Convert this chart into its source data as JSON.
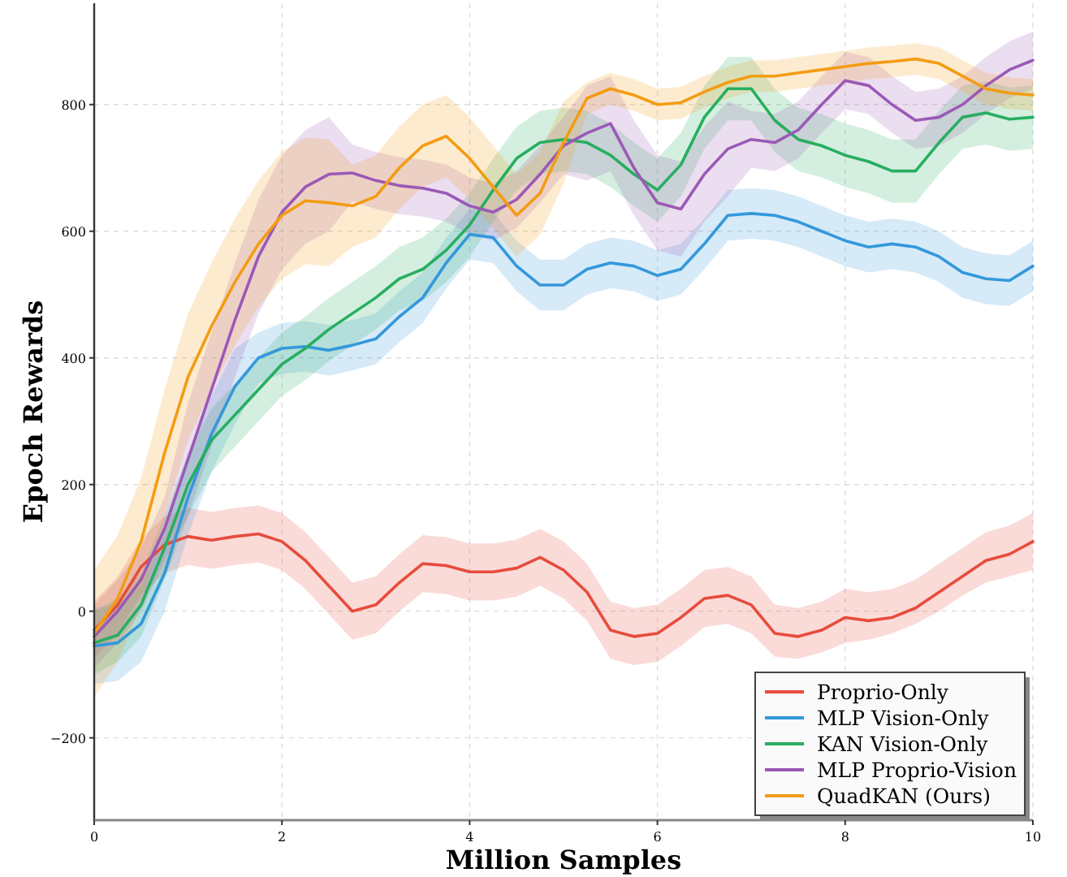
{
  "chart_data": {
    "type": "line",
    "xlabel": "Million Samples",
    "ylabel": "Epoch Rewards",
    "x": [
      0,
      0.25,
      0.5,
      0.75,
      1,
      1.25,
      1.5,
      1.75,
      2,
      2.25,
      2.5,
      2.75,
      3,
      3.25,
      3.5,
      3.75,
      4,
      4.25,
      4.5,
      4.75,
      5,
      5.25,
      5.5,
      5.75,
      6,
      6.25,
      6.5,
      6.75,
      7,
      7.25,
      7.5,
      7.75,
      8,
      8.25,
      8.5,
      8.75,
      9,
      9.25,
      9.5,
      9.75,
      10
    ],
    "xlim": [
      0,
      10
    ],
    "xticks": [
      0,
      2,
      4,
      6,
      8,
      10
    ],
    "ylim": [
      -330,
      960
    ],
    "yticks": [
      -200,
      0,
      200,
      400,
      600,
      800
    ],
    "grid": true,
    "legend": "bottom right",
    "line_style": "solid",
    "marker": "none",
    "series": [
      {
        "name": "Proprio-Only",
        "color": "#e74c3c",
        "values": [
          -30,
          10,
          70,
          105,
          118,
          112,
          118,
          122,
          110,
          80,
          40,
          0,
          10,
          45,
          75,
          72,
          62,
          62,
          68,
          85,
          65,
          30,
          -30,
          -40,
          -35,
          -10,
          20,
          25,
          10,
          -35,
          -40,
          -30,
          -10,
          -15,
          -10,
          5,
          30,
          55,
          80,
          90,
          110
        ],
        "lower": [
          -75,
          -35,
          25,
          60,
          73,
          67,
          73,
          77,
          65,
          35,
          -5,
          -45,
          -35,
          0,
          30,
          27,
          17,
          17,
          23,
          40,
          20,
          -15,
          -75,
          -85,
          -80,
          -55,
          -25,
          -20,
          -35,
          -72,
          -75,
          -65,
          -50,
          -45,
          -35,
          -20,
          0,
          25,
          45,
          55,
          65
        ],
        "upper": [
          15,
          55,
          115,
          150,
          163,
          157,
          163,
          167,
          155,
          125,
          85,
          45,
          55,
          90,
          120,
          117,
          107,
          107,
          113,
          130,
          110,
          75,
          15,
          5,
          10,
          35,
          65,
          70,
          55,
          10,
          5,
          15,
          35,
          30,
          35,
          50,
          75,
          100,
          125,
          135,
          155
        ]
      },
      {
        "name": "MLP Vision-Only",
        "color": "#3498db",
        "values": [
          -55,
          -50,
          -20,
          60,
          180,
          280,
          355,
          400,
          415,
          418,
          412,
          420,
          430,
          465,
          495,
          550,
          595,
          590,
          545,
          515,
          515,
          540,
          550,
          545,
          530,
          540,
          580,
          625,
          628,
          625,
          615,
          600,
          585,
          575,
          580,
          575,
          560,
          535,
          525,
          522,
          545
        ],
        "lower": [
          -115,
          -110,
          -80,
          0,
          120,
          220,
          295,
          360,
          375,
          378,
          372,
          380,
          390,
          425,
          455,
          510,
          555,
          550,
          505,
          475,
          475,
          500,
          510,
          505,
          490,
          500,
          540,
          585,
          588,
          585,
          575,
          560,
          545,
          535,
          540,
          535,
          520,
          495,
          485,
          482,
          505
        ],
        "upper": [
          5,
          10,
          40,
          120,
          240,
          340,
          415,
          440,
          455,
          458,
          452,
          460,
          470,
          505,
          535,
          590,
          635,
          630,
          585,
          555,
          555,
          580,
          590,
          585,
          570,
          580,
          620,
          665,
          668,
          665,
          655,
          640,
          625,
          615,
          620,
          615,
          600,
          575,
          565,
          562,
          585
        ]
      },
      {
        "name": "KAN Vision-Only",
        "color": "#27ae60",
        "values": [
          -50,
          -38,
          10,
          100,
          200,
          270,
          310,
          350,
          390,
          415,
          445,
          470,
          495,
          525,
          540,
          570,
          610,
          665,
          715,
          740,
          745,
          740,
          720,
          690,
          665,
          705,
          780,
          825,
          825,
          775,
          745,
          735,
          720,
          710,
          695,
          695,
          740,
          780,
          787,
          777,
          780
        ],
        "lower": [
          -100,
          -80,
          -40,
          50,
          150,
          220,
          260,
          300,
          340,
          365,
          395,
          420,
          445,
          475,
          490,
          520,
          560,
          615,
          665,
          690,
          695,
          690,
          670,
          640,
          615,
          655,
          730,
          775,
          775,
          725,
          695,
          685,
          670,
          660,
          645,
          645,
          690,
          730,
          737,
          727,
          730
        ],
        "upper": [
          0,
          20,
          60,
          150,
          250,
          320,
          360,
          400,
          440,
          465,
          495,
          520,
          545,
          575,
          590,
          620,
          660,
          715,
          765,
          790,
          795,
          790,
          770,
          740,
          715,
          755,
          830,
          875,
          875,
          825,
          795,
          785,
          770,
          760,
          745,
          745,
          790,
          830,
          837,
          827,
          830
        ]
      },
      {
        "name": "MLP Proprio-Vision",
        "color": "#9b59b6",
        "values": [
          -40,
          0,
          50,
          130,
          240,
          350,
          460,
          560,
          630,
          670,
          690,
          692,
          680,
          672,
          668,
          660,
          640,
          630,
          650,
          690,
          735,
          755,
          770,
          700,
          645,
          635,
          690,
          730,
          745,
          740,
          760,
          800,
          838,
          830,
          800,
          775,
          780,
          800,
          830,
          855,
          870
        ],
        "lower": [
          -90,
          -50,
          0,
          80,
          150,
          260,
          370,
          470,
          540,
          580,
          600,
          647,
          635,
          627,
          623,
          615,
          595,
          585,
          605,
          645,
          690,
          680,
          695,
          625,
          570,
          560,
          615,
          655,
          700,
          695,
          715,
          755,
          793,
          785,
          755,
          730,
          735,
          755,
          785,
          810,
          825
        ],
        "upper": [
          10,
          50,
          100,
          180,
          330,
          440,
          550,
          650,
          720,
          760,
          780,
          737,
          725,
          717,
          713,
          705,
          685,
          675,
          695,
          735,
          780,
          830,
          845,
          775,
          720,
          710,
          765,
          805,
          790,
          785,
          805,
          845,
          883,
          875,
          845,
          820,
          825,
          845,
          875,
          900,
          915
        ]
      },
      {
        "name": "QuadKAN (Ours)",
        "color": "#f39c12",
        "values": [
          -35,
          20,
          110,
          250,
          370,
          450,
          520,
          580,
          625,
          648,
          645,
          640,
          655,
          700,
          735,
          750,
          715,
          670,
          625,
          660,
          740,
          810,
          825,
          815,
          800,
          803,
          820,
          835,
          845,
          845,
          850,
          855,
          860,
          865,
          868,
          872,
          865,
          845,
          825,
          818,
          815
        ],
        "lower": [
          -135,
          -80,
          10,
          150,
          270,
          350,
          420,
          480,
          525,
          548,
          545,
          575,
          590,
          635,
          670,
          685,
          650,
          605,
          560,
          595,
          675,
          785,
          800,
          790,
          775,
          778,
          795,
          810,
          820,
          820,
          825,
          830,
          835,
          840,
          843,
          847,
          840,
          820,
          800,
          793,
          790
        ],
        "upper": [
          65,
          120,
          210,
          350,
          470,
          550,
          620,
          680,
          725,
          748,
          745,
          705,
          720,
          765,
          800,
          815,
          780,
          735,
          690,
          725,
          805,
          835,
          850,
          840,
          825,
          828,
          845,
          860,
          870,
          870,
          875,
          880,
          885,
          890,
          893,
          897,
          890,
          870,
          850,
          843,
          840
        ]
      }
    ]
  }
}
